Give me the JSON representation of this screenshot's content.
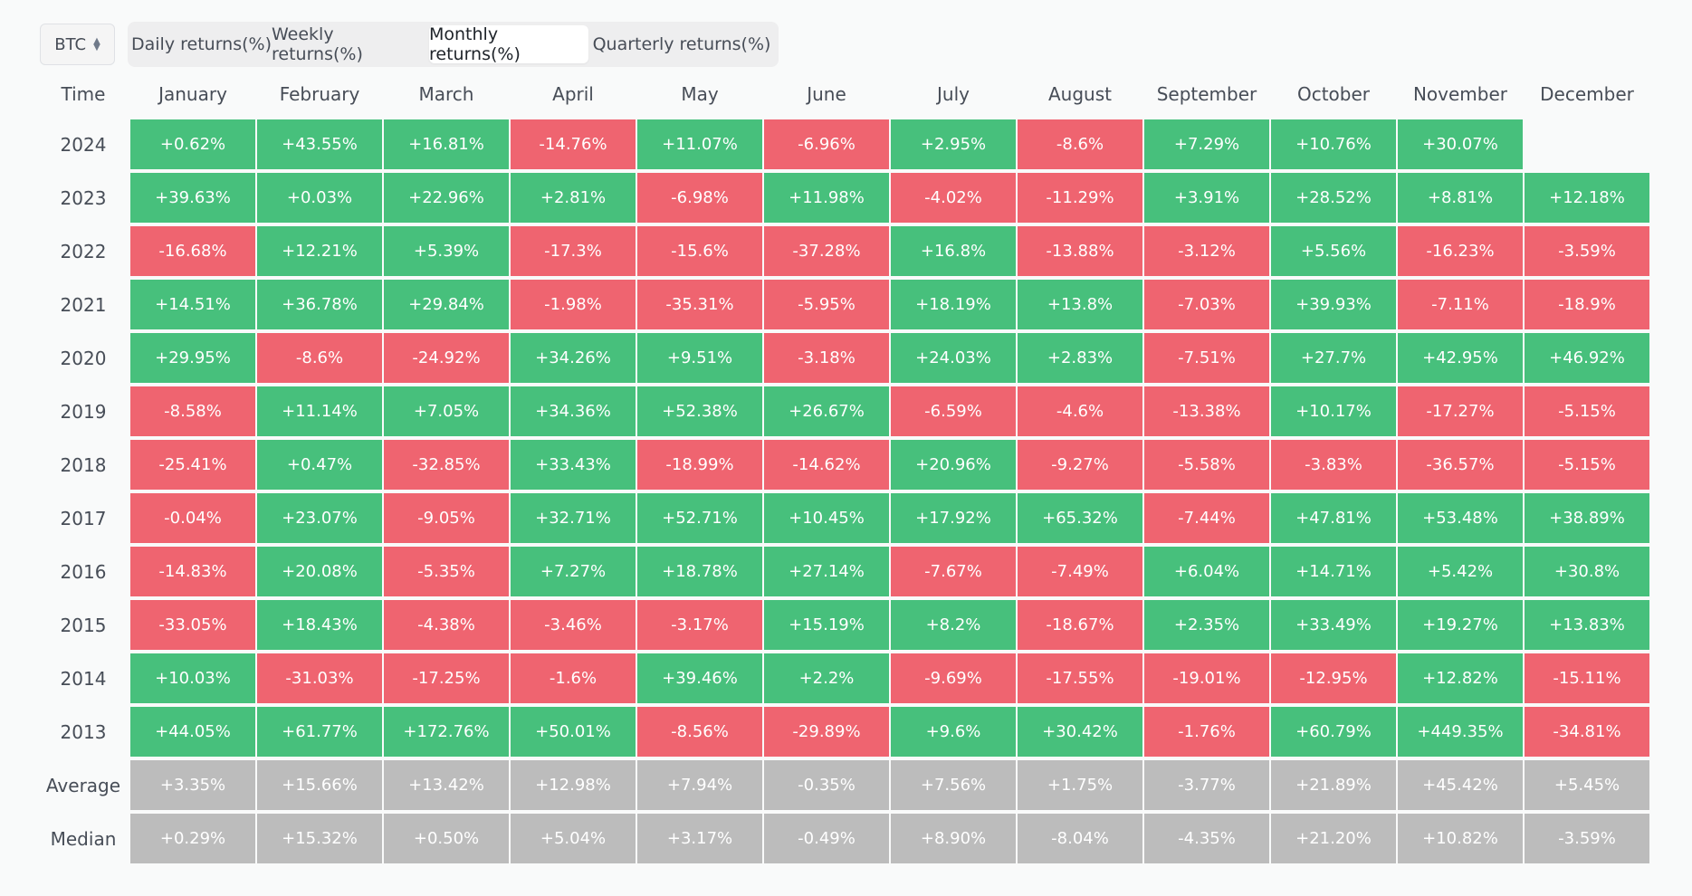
{
  "asset_select": {
    "value": "BTC"
  },
  "tabs": [
    {
      "label": "Daily returns(%)",
      "active": false
    },
    {
      "label": "Weekly returns(%)",
      "active": false
    },
    {
      "label": "Monthly returns(%)",
      "active": true
    },
    {
      "label": "Quarterly returns(%)",
      "active": false
    }
  ],
  "colors": {
    "positive": "#47c07c",
    "negative": "#ef6470",
    "summary": "#bcbcbc"
  },
  "table": {
    "time_header": "Time",
    "months": [
      "January",
      "February",
      "March",
      "April",
      "May",
      "June",
      "July",
      "August",
      "September",
      "October",
      "November",
      "December"
    ],
    "rows": [
      {
        "label": "2024",
        "type": "year",
        "values": [
          "+0.62%",
          "+43.55%",
          "+16.81%",
          "-14.76%",
          "+11.07%",
          "-6.96%",
          "+2.95%",
          "-8.6%",
          "+7.29%",
          "+10.76%",
          "+30.07%",
          ""
        ]
      },
      {
        "label": "2023",
        "type": "year",
        "values": [
          "+39.63%",
          "+0.03%",
          "+22.96%",
          "+2.81%",
          "-6.98%",
          "+11.98%",
          "-4.02%",
          "-11.29%",
          "+3.91%",
          "+28.52%",
          "+8.81%",
          "+12.18%"
        ]
      },
      {
        "label": "2022",
        "type": "year",
        "values": [
          "-16.68%",
          "+12.21%",
          "+5.39%",
          "-17.3%",
          "-15.6%",
          "-37.28%",
          "+16.8%",
          "-13.88%",
          "-3.12%",
          "+5.56%",
          "-16.23%",
          "-3.59%"
        ]
      },
      {
        "label": "2021",
        "type": "year",
        "values": [
          "+14.51%",
          "+36.78%",
          "+29.84%",
          "-1.98%",
          "-35.31%",
          "-5.95%",
          "+18.19%",
          "+13.8%",
          "-7.03%",
          "+39.93%",
          "-7.11%",
          "-18.9%"
        ]
      },
      {
        "label": "2020",
        "type": "year",
        "values": [
          "+29.95%",
          "-8.6%",
          "-24.92%",
          "+34.26%",
          "+9.51%",
          "-3.18%",
          "+24.03%",
          "+2.83%",
          "-7.51%",
          "+27.7%",
          "+42.95%",
          "+46.92%"
        ]
      },
      {
        "label": "2019",
        "type": "year",
        "values": [
          "-8.58%",
          "+11.14%",
          "+7.05%",
          "+34.36%",
          "+52.38%",
          "+26.67%",
          "-6.59%",
          "-4.6%",
          "-13.38%",
          "+10.17%",
          "-17.27%",
          "-5.15%"
        ]
      },
      {
        "label": "2018",
        "type": "year",
        "values": [
          "-25.41%",
          "+0.47%",
          "-32.85%",
          "+33.43%",
          "-18.99%",
          "-14.62%",
          "+20.96%",
          "-9.27%",
          "-5.58%",
          "-3.83%",
          "-36.57%",
          "-5.15%"
        ]
      },
      {
        "label": "2017",
        "type": "year",
        "values": [
          "-0.04%",
          "+23.07%",
          "-9.05%",
          "+32.71%",
          "+52.71%",
          "+10.45%",
          "+17.92%",
          "+65.32%",
          "-7.44%",
          "+47.81%",
          "+53.48%",
          "+38.89%"
        ]
      },
      {
        "label": "2016",
        "type": "year",
        "values": [
          "-14.83%",
          "+20.08%",
          "-5.35%",
          "+7.27%",
          "+18.78%",
          "+27.14%",
          "-7.67%",
          "-7.49%",
          "+6.04%",
          "+14.71%",
          "+5.42%",
          "+30.8%"
        ]
      },
      {
        "label": "2015",
        "type": "year",
        "values": [
          "-33.05%",
          "+18.43%",
          "-4.38%",
          "-3.46%",
          "-3.17%",
          "+15.19%",
          "+8.2%",
          "-18.67%",
          "+2.35%",
          "+33.49%",
          "+19.27%",
          "+13.83%"
        ]
      },
      {
        "label": "2014",
        "type": "year",
        "values": [
          "+10.03%",
          "-31.03%",
          "-17.25%",
          "-1.6%",
          "+39.46%",
          "+2.2%",
          "-9.69%",
          "-17.55%",
          "-19.01%",
          "-12.95%",
          "+12.82%",
          "-15.11%"
        ]
      },
      {
        "label": "2013",
        "type": "year",
        "values": [
          "+44.05%",
          "+61.77%",
          "+172.76%",
          "+50.01%",
          "-8.56%",
          "-29.89%",
          "+9.6%",
          "+30.42%",
          "-1.76%",
          "+60.79%",
          "+449.35%",
          "-34.81%"
        ]
      },
      {
        "label": "Average",
        "type": "stat",
        "values": [
          "+3.35%",
          "+15.66%",
          "+13.42%",
          "+12.98%",
          "+7.94%",
          "-0.35%",
          "+7.56%",
          "+1.75%",
          "-3.77%",
          "+21.89%",
          "+45.42%",
          "+5.45%"
        ]
      },
      {
        "label": "Median",
        "type": "stat",
        "values": [
          "+0.29%",
          "+15.32%",
          "+0.50%",
          "+5.04%",
          "+3.17%",
          "-0.49%",
          "+8.90%",
          "-8.04%",
          "-4.35%",
          "+21.20%",
          "+10.82%",
          "-3.59%"
        ]
      }
    ]
  }
}
